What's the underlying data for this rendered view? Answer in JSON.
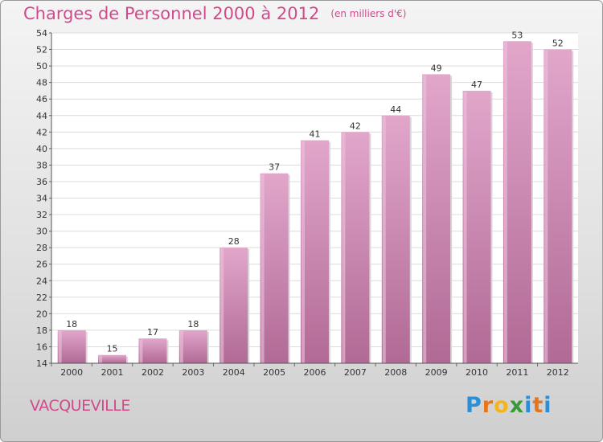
{
  "chart_data": {
    "type": "bar",
    "title": "Charges de Personnel 2000 à 2012",
    "subtitle": "(en milliers d'€)",
    "categories": [
      "2000",
      "2001",
      "2002",
      "2003",
      "2004",
      "2005",
      "2006",
      "2007",
      "2008",
      "2009",
      "2010",
      "2011",
      "2012"
    ],
    "values": [
      18,
      15,
      17,
      18,
      28,
      37,
      41,
      42,
      44,
      49,
      47,
      53,
      52
    ],
    "ylim": [
      14,
      54
    ],
    "yticks": [
      14,
      16,
      18,
      20,
      22,
      24,
      26,
      28,
      30,
      32,
      34,
      36,
      38,
      40,
      42,
      44,
      46,
      48,
      50,
      52,
      54
    ],
    "grid": true,
    "bar_color": "#c97fae"
  },
  "commune": "VACQUEVILLE",
  "logo": {
    "letters": [
      "P",
      "r",
      "o",
      "x",
      "i",
      "t",
      "i"
    ],
    "colors": [
      "#2a8fd6",
      "#e8751a",
      "#f2b51c",
      "#3a9a3a",
      "#2a8fd6",
      "#e8751a",
      "#2a8fd6"
    ]
  }
}
